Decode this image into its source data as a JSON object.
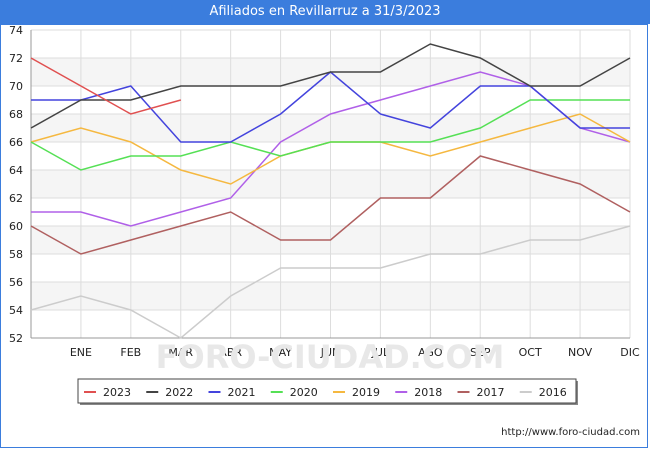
{
  "header": {
    "title": "Afiliados en Revillarruz a 31/3/2023"
  },
  "footer": {
    "url": "http://www.foro-ciudad.com"
  },
  "watermark": "FORO-CIUDAD.COM",
  "chart_data": {
    "type": "line",
    "title": "Afiliados en Revillarruz a 31/3/2023",
    "categories": [
      "",
      "ENE",
      "FEB",
      "MAR",
      "ABR",
      "MAY",
      "JUN",
      "JUL",
      "AGO",
      "SEP",
      "OCT",
      "NOV",
      "DIC"
    ],
    "ylim": [
      52,
      74
    ],
    "yticks": [
      52,
      54,
      56,
      58,
      60,
      62,
      64,
      66,
      68,
      70,
      72,
      74
    ],
    "grid": true,
    "legend_position": "bottom",
    "series": [
      {
        "name": "2023",
        "color": "#e05050",
        "values": [
          72,
          70,
          68,
          69,
          null,
          null,
          null,
          null,
          null,
          null,
          null,
          null,
          null
        ]
      },
      {
        "name": "2022",
        "color": "#444444",
        "values": [
          67,
          69,
          69,
          70,
          70,
          70,
          71,
          71,
          73,
          72,
          70,
          70,
          72
        ]
      },
      {
        "name": "2021",
        "color": "#4444dd",
        "values": [
          69,
          69,
          70,
          66,
          66,
          68,
          71,
          68,
          67,
          70,
          70,
          67,
          67
        ]
      },
      {
        "name": "2020",
        "color": "#55e055",
        "values": [
          66,
          64,
          65,
          65,
          66,
          65,
          66,
          66,
          66,
          67,
          69,
          69,
          69
        ]
      },
      {
        "name": "2019",
        "color": "#f5b840",
        "values": [
          66,
          67,
          66,
          64,
          63,
          65,
          66,
          66,
          65,
          66,
          67,
          68,
          66
        ]
      },
      {
        "name": "2018",
        "color": "#b060e8",
        "values": [
          61,
          61,
          60,
          61,
          62,
          66,
          68,
          69,
          70,
          71,
          70,
          67,
          66
        ]
      },
      {
        "name": "2017",
        "color": "#b06060",
        "values": [
          60,
          58,
          59,
          60,
          61,
          59,
          59,
          62,
          62,
          65,
          64,
          63,
          61
        ]
      },
      {
        "name": "2016",
        "color": "#cccccc",
        "values": [
          54,
          55,
          54,
          52,
          55,
          57,
          57,
          57,
          58,
          58,
          59,
          59,
          60
        ]
      }
    ]
  }
}
